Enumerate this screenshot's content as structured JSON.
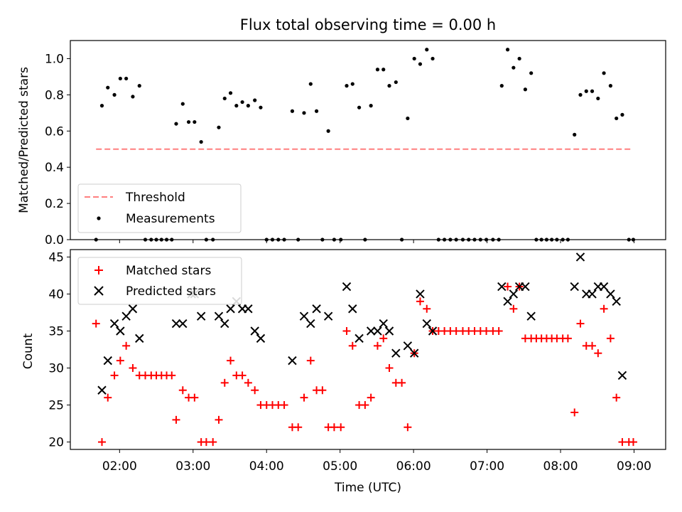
{
  "figure": {
    "title": "Flux total observing time = 0.00 h",
    "xlabel": "Time (UTC)"
  },
  "chart_data": [
    {
      "type": "scatter",
      "ylabel": "Matched/Predicted stars",
      "xlim": [
        1.33,
        9.43
      ],
      "ylim": [
        0,
        1.1
      ],
      "yticks": [
        0.0,
        0.2,
        0.4,
        0.6,
        0.8,
        1.0
      ],
      "ytick_labels": [
        "0.0",
        "0.2",
        "0.4",
        "0.6",
        "0.8",
        "1.0"
      ],
      "xticks": [
        2,
        3,
        4,
        5,
        6,
        7,
        8,
        9
      ],
      "threshold": {
        "name": "Threshold",
        "x": [
          1.68,
          8.98
        ],
        "y": 0.5,
        "color": "#ff7f7f"
      },
      "legend": {
        "position": "lower-left",
        "entries": [
          "Threshold",
          "Measurements"
        ]
      },
      "series": [
        {
          "name": "Measurements",
          "color": "#000000",
          "points": [
            [
              1.68,
              0.0
            ],
            [
              1.76,
              0.74
            ],
            [
              1.84,
              0.84
            ],
            [
              1.93,
              0.8
            ],
            [
              2.01,
              0.89
            ],
            [
              2.09,
              0.89
            ],
            [
              2.18,
              0.79
            ],
            [
              2.27,
              0.85
            ],
            [
              2.35,
              0.0
            ],
            [
              2.43,
              0.0
            ],
            [
              2.5,
              0.0
            ],
            [
              2.57,
              0.0
            ],
            [
              2.64,
              0.0
            ],
            [
              2.71,
              0.0
            ],
            [
              2.77,
              0.64
            ],
            [
              2.86,
              0.75
            ],
            [
              2.94,
              0.65
            ],
            [
              3.02,
              0.65
            ],
            [
              3.11,
              0.54
            ],
            [
              3.18,
              0.0
            ],
            [
              3.27,
              0.0
            ],
            [
              3.35,
              0.62
            ],
            [
              3.43,
              0.78
            ],
            [
              3.51,
              0.81
            ],
            [
              3.59,
              0.74
            ],
            [
              3.67,
              0.76
            ],
            [
              3.75,
              0.74
            ],
            [
              3.84,
              0.77
            ],
            [
              3.92,
              0.73
            ],
            [
              4.0,
              0.0
            ],
            [
              4.08,
              0.0
            ],
            [
              4.16,
              0.0
            ],
            [
              4.24,
              0.0
            ],
            [
              4.35,
              0.71
            ],
            [
              4.43,
              0.0
            ],
            [
              4.51,
              0.7
            ],
            [
              4.6,
              0.86
            ],
            [
              4.68,
              0.71
            ],
            [
              4.76,
              0.0
            ],
            [
              4.84,
              0.6
            ],
            [
              4.92,
              0.0
            ],
            [
              5.01,
              0.0
            ],
            [
              5.09,
              0.85
            ],
            [
              5.17,
              0.86
            ],
            [
              5.26,
              0.73
            ],
            [
              5.34,
              0.0
            ],
            [
              5.42,
              0.74
            ],
            [
              5.51,
              0.94
            ],
            [
              5.59,
              0.94
            ],
            [
              5.67,
              0.85
            ],
            [
              5.76,
              0.87
            ],
            [
              5.84,
              0.0
            ],
            [
              5.92,
              0.67
            ],
            [
              6.01,
              1.0
            ],
            [
              6.09,
              0.97
            ],
            [
              6.18,
              1.05
            ],
            [
              6.26,
              1.0
            ],
            [
              6.34,
              0.0
            ],
            [
              6.42,
              0.0
            ],
            [
              6.5,
              0.0
            ],
            [
              6.58,
              0.0
            ],
            [
              6.67,
              0.0
            ],
            [
              6.75,
              0.0
            ],
            [
              6.83,
              0.0
            ],
            [
              6.91,
              0.0
            ],
            [
              6.99,
              0.0
            ],
            [
              7.08,
              0.0
            ],
            [
              7.16,
              0.0
            ],
            [
              7.2,
              0.85
            ],
            [
              7.28,
              1.05
            ],
            [
              7.36,
              0.95
            ],
            [
              7.44,
              1.0
            ],
            [
              7.52,
              0.83
            ],
            [
              7.6,
              0.92
            ],
            [
              7.67,
              0.0
            ],
            [
              7.74,
              0.0
            ],
            [
              7.81,
              0.0
            ],
            [
              7.88,
              0.0
            ],
            [
              7.95,
              0.0
            ],
            [
              8.03,
              0.0
            ],
            [
              8.1,
              0.0
            ],
            [
              8.19,
              0.58
            ],
            [
              8.27,
              0.8
            ],
            [
              8.35,
              0.82
            ],
            [
              8.43,
              0.82
            ],
            [
              8.51,
              0.78
            ],
            [
              8.59,
              0.92
            ],
            [
              8.68,
              0.85
            ],
            [
              8.76,
              0.67
            ],
            [
              8.84,
              0.69
            ],
            [
              8.93,
              0.0
            ],
            [
              8.99,
              0.0
            ]
          ]
        }
      ]
    },
    {
      "type": "scatter",
      "ylabel": "Count",
      "xlabel": "Time (UTC)",
      "xlim": [
        1.33,
        9.43
      ],
      "ylim": [
        19,
        46
      ],
      "yticks": [
        20,
        25,
        30,
        35,
        40,
        45
      ],
      "ytick_labels": [
        "20",
        "25",
        "30",
        "35",
        "40",
        "45"
      ],
      "xticks": [
        2,
        3,
        4,
        5,
        6,
        7,
        8,
        9
      ],
      "xtick_labels": [
        "02:00",
        "03:00",
        "04:00",
        "05:00",
        "06:00",
        "07:00",
        "08:00",
        "09:00"
      ],
      "legend": {
        "position": "upper-left",
        "entries": [
          "Matched stars",
          "Predicted stars"
        ]
      },
      "series": [
        {
          "name": "Matched stars",
          "marker": "plus",
          "color": "#ff0000",
          "points": [
            [
              1.68,
              36
            ],
            [
              1.76,
              20
            ],
            [
              1.84,
              26
            ],
            [
              1.93,
              29
            ],
            [
              2.01,
              31
            ],
            [
              2.09,
              33
            ],
            [
              2.18,
              30
            ],
            [
              2.27,
              29
            ],
            [
              2.35,
              29
            ],
            [
              2.43,
              29
            ],
            [
              2.5,
              29
            ],
            [
              2.57,
              29
            ],
            [
              2.64,
              29
            ],
            [
              2.71,
              29
            ],
            [
              2.77,
              23
            ],
            [
              2.86,
              27
            ],
            [
              2.94,
              26
            ],
            [
              3.02,
              26
            ],
            [
              3.11,
              20
            ],
            [
              3.18,
              20
            ],
            [
              3.27,
              20
            ],
            [
              3.35,
              23
            ],
            [
              3.43,
              28
            ],
            [
              3.51,
              31
            ],
            [
              3.59,
              29
            ],
            [
              3.67,
              29
            ],
            [
              3.75,
              28
            ],
            [
              3.84,
              27
            ],
            [
              3.92,
              25
            ],
            [
              4.0,
              25
            ],
            [
              4.08,
              25
            ],
            [
              4.16,
              25
            ],
            [
              4.24,
              25
            ],
            [
              4.35,
              22
            ],
            [
              4.43,
              22
            ],
            [
              4.51,
              26
            ],
            [
              4.6,
              31
            ],
            [
              4.68,
              27
            ],
            [
              4.76,
              27
            ],
            [
              4.84,
              22
            ],
            [
              4.92,
              22
            ],
            [
              5.01,
              22
            ],
            [
              5.09,
              35
            ],
            [
              5.17,
              33
            ],
            [
              5.26,
              25
            ],
            [
              5.34,
              25
            ],
            [
              5.42,
              26
            ],
            [
              5.51,
              33
            ],
            [
              5.59,
              34
            ],
            [
              5.67,
              30
            ],
            [
              5.76,
              28
            ],
            [
              5.84,
              28
            ],
            [
              5.92,
              22
            ],
            [
              6.01,
              32
            ],
            [
              6.09,
              39
            ],
            [
              6.18,
              38
            ],
            [
              6.26,
              35
            ],
            [
              6.34,
              35
            ],
            [
              6.42,
              35
            ],
            [
              6.5,
              35
            ],
            [
              6.58,
              35
            ],
            [
              6.67,
              35
            ],
            [
              6.75,
              35
            ],
            [
              6.83,
              35
            ],
            [
              6.91,
              35
            ],
            [
              6.99,
              35
            ],
            [
              7.08,
              35
            ],
            [
              7.16,
              35
            ],
            [
              7.28,
              41
            ],
            [
              7.36,
              38
            ],
            [
              7.44,
              41
            ],
            [
              7.52,
              34
            ],
            [
              7.6,
              34
            ],
            [
              7.67,
              34
            ],
            [
              7.74,
              34
            ],
            [
              7.81,
              34
            ],
            [
              7.88,
              34
            ],
            [
              7.95,
              34
            ],
            [
              8.03,
              34
            ],
            [
              8.1,
              34
            ],
            [
              8.19,
              24
            ],
            [
              8.27,
              36
            ],
            [
              8.35,
              33
            ],
            [
              8.43,
              33
            ],
            [
              8.51,
              32
            ],
            [
              8.59,
              38
            ],
            [
              8.68,
              34
            ],
            [
              8.76,
              26
            ],
            [
              8.84,
              20
            ],
            [
              8.93,
              20
            ],
            [
              8.99,
              20
            ]
          ]
        },
        {
          "name": "Predicted stars",
          "marker": "x",
          "color": "#000000",
          "points": [
            [
              1.76,
              27
            ],
            [
              1.84,
              31
            ],
            [
              1.93,
              36
            ],
            [
              2.01,
              35
            ],
            [
              2.09,
              37
            ],
            [
              2.18,
              38
            ],
            [
              2.27,
              34
            ],
            [
              2.77,
              36
            ],
            [
              2.86,
              36
            ],
            [
              2.98,
              40
            ],
            [
              3.02,
              40
            ],
            [
              3.11,
              37
            ],
            [
              3.35,
              37
            ],
            [
              3.43,
              36
            ],
            [
              3.51,
              38
            ],
            [
              3.59,
              39
            ],
            [
              3.67,
              38
            ],
            [
              3.75,
              38
            ],
            [
              3.84,
              35
            ],
            [
              3.92,
              34
            ],
            [
              4.35,
              31
            ],
            [
              4.51,
              37
            ],
            [
              4.6,
              36
            ],
            [
              4.68,
              38
            ],
            [
              4.84,
              37
            ],
            [
              5.09,
              41
            ],
            [
              5.17,
              38
            ],
            [
              5.26,
              34
            ],
            [
              5.42,
              35
            ],
            [
              5.51,
              35
            ],
            [
              5.59,
              36
            ],
            [
              5.67,
              35
            ],
            [
              5.76,
              32
            ],
            [
              5.92,
              33
            ],
            [
              6.01,
              32
            ],
            [
              6.09,
              40
            ],
            [
              6.18,
              36
            ],
            [
              6.26,
              35
            ],
            [
              7.2,
              41
            ],
            [
              7.28,
              39
            ],
            [
              7.36,
              40
            ],
            [
              7.44,
              41
            ],
            [
              7.52,
              41
            ],
            [
              7.6,
              37
            ],
            [
              8.19,
              41
            ],
            [
              8.27,
              45
            ],
            [
              8.35,
              40
            ],
            [
              8.43,
              40
            ],
            [
              8.51,
              41
            ],
            [
              8.59,
              41
            ],
            [
              8.68,
              40
            ],
            [
              8.76,
              39
            ],
            [
              8.84,
              29
            ]
          ]
        }
      ]
    }
  ]
}
